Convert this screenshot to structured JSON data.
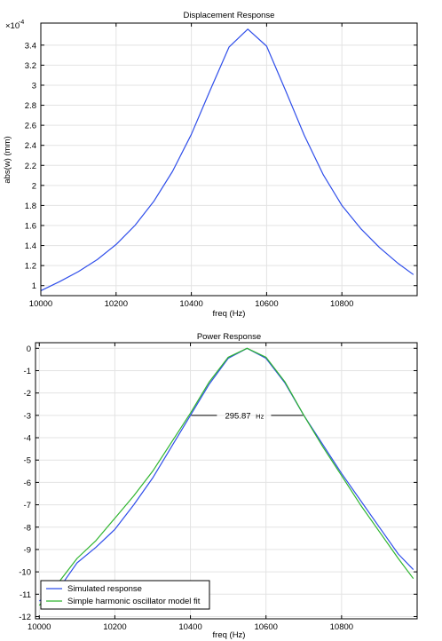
{
  "chart_data": [
    {
      "type": "line",
      "title": "Displacement Response",
      "xlabel": "freq (Hz)",
      "ylabel": "abs(w) (mm)",
      "y_multiplier_label": "×10",
      "y_multiplier_exponent": "-4",
      "xlim": [
        10000,
        11000
      ],
      "ylim": [
        0.9,
        3.62
      ],
      "x_ticks": [
        10000,
        10200,
        10400,
        10600,
        10800
      ],
      "x_tick_labels": [
        "10000",
        "10200",
        "10400",
        "10600",
        "10800"
      ],
      "y_ticks": [
        1,
        1.2,
        1.4,
        1.6,
        1.8,
        2,
        2.2,
        2.4,
        2.6,
        2.8,
        3,
        3.2,
        3.4
      ],
      "y_tick_labels": [
        "1",
        "1.2",
        "1.4",
        "1.6",
        "1.8",
        "2",
        "2.2",
        "2.4",
        "2.6",
        "2.8",
        "3",
        "3.2",
        "3.4"
      ],
      "grid": true,
      "series": [
        {
          "color": "#2f4eea",
          "x": [
            10000,
            10050,
            10100,
            10150,
            10200,
            10250,
            10300,
            10350,
            10400,
            10450,
            10500,
            10550,
            10600,
            10650,
            10700,
            10750,
            10800,
            10850,
            10900,
            10950,
            10990
          ],
          "y": [
            0.95,
            1.04,
            1.14,
            1.26,
            1.41,
            1.6,
            1.84,
            2.14,
            2.51,
            2.95,
            3.38,
            3.56,
            3.39,
            2.95,
            2.5,
            2.11,
            1.8,
            1.57,
            1.38,
            1.22,
            1.11
          ]
        }
      ]
    },
    {
      "type": "line",
      "title": "Power Response",
      "xlabel": "freq (Hz)",
      "ylabel": "",
      "xlim": [
        9990,
        11000
      ],
      "ylim": [
        -12.1,
        0.25
      ],
      "x_ticks": [
        10000,
        10200,
        10400,
        10600,
        10800
      ],
      "x_tick_labels": [
        "10000",
        "10200",
        "10400",
        "10600",
        "10800"
      ],
      "y_ticks": [
        0,
        -1,
        -2,
        -3,
        -4,
        -5,
        -6,
        -7,
        -8,
        -9,
        -10,
        -11,
        -12
      ],
      "y_tick_labels": [
        "0",
        "-1",
        "-2",
        "-3",
        "-4",
        "-5",
        "-6",
        "-7",
        "-8",
        "-9",
        "-10",
        "-11",
        "-12"
      ],
      "grid": true,
      "legend_position": "bottom-left",
      "annotation": {
        "value": "295.87",
        "unit": "Hz",
        "y": -3,
        "x_start": 10402,
        "x_end": 10698,
        "label_x": 10550
      },
      "series": [
        {
          "name": "Simulated response",
          "color": "#2f4eea",
          "x": [
            10000,
            10050,
            10100,
            10150,
            10200,
            10250,
            10300,
            10350,
            10400,
            10450,
            10500,
            10550,
            10600,
            10650,
            10700,
            10750,
            10800,
            10850,
            10900,
            10950,
            10990
          ],
          "y": [
            -11.3,
            -10.8,
            -9.6,
            -8.9,
            -8.1,
            -7.0,
            -5.8,
            -4.4,
            -3.0,
            -1.6,
            -0.45,
            0,
            -0.45,
            -1.55,
            -3.0,
            -4.3,
            -5.6,
            -6.8,
            -8.0,
            -9.2,
            -9.9
          ]
        },
        {
          "name": "Simple harmonic oscillator model fit",
          "color": "#2fb52f",
          "x": [
            10000,
            10050,
            10100,
            10150,
            10200,
            10250,
            10300,
            10350,
            10400,
            10450,
            10500,
            10550,
            10600,
            10650,
            10700,
            10750,
            10800,
            10850,
            10900,
            10950,
            10990
          ],
          "y": [
            -11.5,
            -10.5,
            -9.4,
            -8.6,
            -7.6,
            -6.6,
            -5.5,
            -4.2,
            -2.9,
            -1.5,
            -0.4,
            0,
            -0.4,
            -1.5,
            -3.0,
            -4.4,
            -5.7,
            -7.0,
            -8.2,
            -9.4,
            -10.3
          ]
        }
      ]
    }
  ]
}
